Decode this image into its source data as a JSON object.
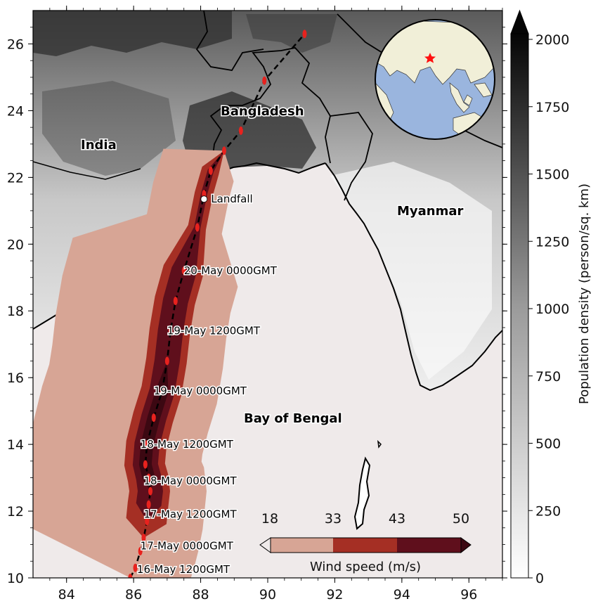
{
  "map": {
    "x_ticks": [
      "84",
      "86",
      "88",
      "90",
      "92",
      "94",
      "96"
    ],
    "y_ticks": [
      "10",
      "12",
      "14",
      "16",
      "18",
      "20",
      "22",
      "24",
      "26"
    ],
    "places": {
      "bangladesh": "Bangladesh",
      "india": "India",
      "myanmar": "Myanmar",
      "bay": "Bay of Bengal",
      "landfall": "Landfall"
    },
    "track_times": [
      {
        "text": "20-May 0000GMT",
        "lon": 87.5,
        "lat": 19.1
      },
      {
        "text": "19-May 1200GMT",
        "lon": 87.0,
        "lat": 17.3
      },
      {
        "text": "19-May 0000GMT",
        "lon": 86.6,
        "lat": 15.5
      },
      {
        "text": "18-May 1200GMT",
        "lon": 86.2,
        "lat": 13.9
      },
      {
        "text": "18-May 0000GMT",
        "lon": 86.3,
        "lat": 12.8
      },
      {
        "text": "17-May 1200GMT",
        "lon": 86.3,
        "lat": 11.8
      },
      {
        "text": "17-May 0000GMT",
        "lon": 86.2,
        "lat": 10.85
      },
      {
        "text": "16-May 1200GMT",
        "lon": 86.1,
        "lat": 10.15
      }
    ],
    "track_points": [
      [
        85.9,
        10.0
      ],
      [
        86.05,
        10.3
      ],
      [
        86.2,
        10.8
      ],
      [
        86.3,
        11.2
      ],
      [
        86.4,
        11.7
      ],
      [
        86.45,
        12.2
      ],
      [
        86.5,
        12.6
      ],
      [
        86.45,
        13.0
      ],
      [
        86.35,
        13.4
      ],
      [
        86.4,
        14.0
      ],
      [
        86.6,
        14.8
      ],
      [
        86.85,
        15.6
      ],
      [
        87.0,
        16.5
      ],
      [
        87.1,
        17.4
      ],
      [
        87.25,
        18.3
      ],
      [
        87.5,
        19.2
      ],
      [
        87.9,
        20.5
      ],
      [
        88.1,
        21.5
      ],
      [
        88.3,
        22.2
      ],
      [
        88.7,
        22.8
      ],
      [
        89.2,
        23.4
      ],
      [
        89.9,
        24.9
      ],
      [
        91.1,
        26.3
      ]
    ],
    "landfall_point": [
      88.1,
      21.35
    ],
    "colors": {
      "ocean": "#efeaea",
      "wind_18": "#d7a595",
      "wind_33": "#a52f24",
      "wind_43": "#5f0f1c",
      "wind_50": "#3c0812",
      "track": "#000000",
      "marker": "#e8221e",
      "globe_ocean": "#9ab5de",
      "globe_land": "#f1efd8"
    }
  },
  "colorbar": {
    "label": "Population density (person/sq. km)",
    "ticks": [
      "0",
      "250",
      "500",
      "750",
      "1000",
      "1250",
      "1500",
      "1750",
      "2000"
    ]
  },
  "wind_colorbar": {
    "label": "Wind speed (m/s)",
    "ticks": [
      "18",
      "33",
      "43",
      "50"
    ]
  }
}
